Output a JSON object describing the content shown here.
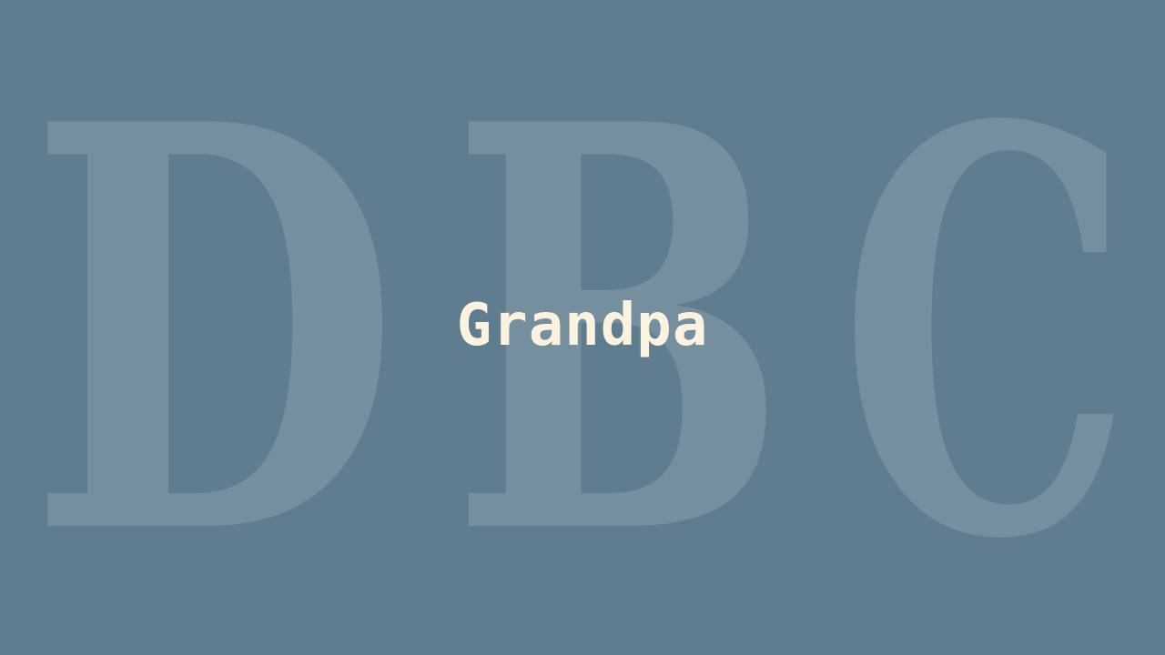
{
  "background_color": "#5f7d8e",
  "watermark": {
    "letters": [
      "D",
      "B",
      "C"
    ],
    "color": "#ffffff"
  },
  "title": {
    "text": "Grandpa",
    "color": "#fbf3df"
  }
}
